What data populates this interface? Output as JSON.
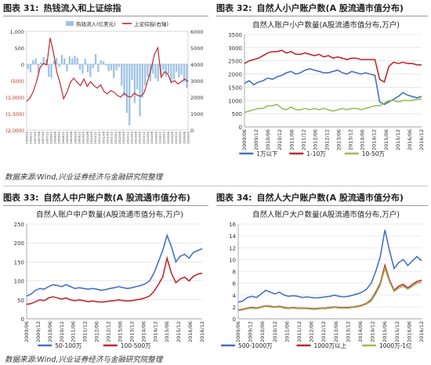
{
  "panels": {
    "p31": {
      "label": "图表 31:",
      "title": "热钱流入和上证综指"
    },
    "p32": {
      "label": "图表 32:",
      "title": "自然人小户账户数(A 股流通市值分布)"
    },
    "p33": {
      "label": "图表 33:",
      "title": "自然人中户账户数(A 股流通市值分布)"
    },
    "p34": {
      "label": "图表 34:",
      "title": "自然人大户账户数(A 股流通市值分布)"
    }
  },
  "sources": {
    "top": "数据来源:Wind,兴业证券经济与金融研究院整理",
    "bottom": "数据来源:Wind,兴业证券经济与金融研究院整理"
  },
  "chart_data": [
    {
      "id": "c31",
      "type": "bar",
      "title": "",
      "legend": [
        "热钱流入(亿美元)",
        "上证综指(右轴)"
      ],
      "legend_position": "top",
      "ylim": [
        -2000,
        1000
      ],
      "yticks": [
        "1,000",
        "500",
        "0",
        "(500)",
        "(1,000)",
        "(1,500)",
        "(2,000)"
      ],
      "ylim_right": [
        0,
        6000
      ],
      "yticks_right": [
        "6000",
        "5000",
        "4000",
        "3000",
        "2000",
        "1000",
        "0"
      ],
      "xticks": [
        "2006/09",
        "2006/12",
        "2007/03",
        "2007/06",
        "2007/09",
        "2007/12",
        "2008/03",
        "2008/06",
        "2008/09",
        "2008/12",
        "2009/03",
        "2009/06",
        "2009/09",
        "2009/12",
        "2010/03",
        "2010/06",
        "2010/09",
        "2010/12",
        "2011/03",
        "2011/06",
        "2011/09",
        "2011/12",
        "2012/03",
        "2012/06",
        "2012/09",
        "2012/12",
        "2013/03",
        "2013/06",
        "2013/09",
        "2013/12",
        "2014/03",
        "2014/06",
        "2014/09",
        "2014/12",
        "2015/03",
        "2015/06",
        "2015/09",
        "2015/12",
        "2016/03",
        "2016/06",
        "2016/09"
      ],
      "series": [
        {
          "name": "热钱流入(亿美元)",
          "color": "#9dc3e6",
          "axis": "left",
          "values": [
            -150,
            -250,
            120,
            180,
            -280,
            60,
            220,
            150,
            -380,
            -420,
            110,
            190,
            -80,
            280,
            180,
            -220,
            240,
            170,
            260,
            190,
            -160,
            -280,
            160,
            -240,
            -380,
            -120,
            310,
            -240,
            120,
            90,
            -30,
            -210,
            -180,
            -420,
            -180,
            -80,
            -650,
            -980,
            -1480,
            -1860,
            -480,
            -1180,
            -760,
            -1580,
            -1020,
            -640,
            -380,
            -520,
            -280,
            -430,
            -520,
            -340,
            -180,
            -380,
            -280,
            -580,
            -460,
            -230,
            -400,
            -320,
            -540,
            -720
          ]
        },
        {
          "name": "上证综指(右轴)",
          "color": "#c0282e",
          "axis": "right",
          "values": [
            1750,
            1950,
            2350,
            3000,
            3800,
            4050,
            3950,
            5600,
            4700,
            3500,
            2800,
            1900,
            2300,
            2900,
            3150,
            2900,
            2700,
            3100,
            2650,
            2950,
            2700,
            2550,
            2750,
            2350,
            2200,
            2400,
            2300,
            2100,
            2000,
            2250,
            2050,
            2000,
            2250,
            2100,
            2050,
            2300,
            3000,
            3700,
            4600,
            5000,
            3200,
            3550,
            3400,
            2900,
            3000,
            2800,
            2950,
            3100,
            2950
          ]
        }
      ]
    },
    {
      "id": "c32",
      "type": "line",
      "title": "自然人账户小户数量(A股流通市值分布,万户)",
      "ylim": [
        0,
        3500
      ],
      "yticks": [
        "3500",
        "3000",
        "2500",
        "2000",
        "1500",
        "1000",
        "500",
        "0"
      ],
      "xticks": [
        "2009/06",
        "2009/12",
        "2010/06",
        "2010/12",
        "2011/06",
        "2011/12",
        "2012/06",
        "2012/12",
        "2013/06",
        "2013/12",
        "2014/06",
        "2014/12",
        "2015/06",
        "2015/12",
        "2016/06",
        "2016/12"
      ],
      "legend_position": "bottom",
      "series": [
        {
          "name": "1万以下",
          "color": "#4472c4",
          "values": [
            1650,
            1750,
            1600,
            1700,
            1750,
            1850,
            1800,
            1900,
            1950,
            2050,
            2100,
            2000,
            2050,
            2150,
            2200,
            2150,
            2100,
            2050,
            2050,
            2100,
            2150,
            2050,
            2000,
            2100,
            2050,
            2000,
            2050,
            2000,
            1950,
            950,
            850,
            950,
            1050,
            1150,
            1300,
            1200,
            1150,
            1100,
            1150
          ]
        },
        {
          "name": "1-10万",
          "color": "#c0282e",
          "values": [
            2400,
            2500,
            2550,
            2600,
            2700,
            2800,
            2850,
            2850,
            2900,
            2800,
            2850,
            2750,
            2750,
            2800,
            2750,
            2700,
            2750,
            2650,
            2700,
            2600,
            2650,
            2600,
            2550,
            2600,
            2600,
            2550,
            2550,
            2550,
            2550,
            1800,
            1700,
            2300,
            2450,
            2400,
            2450,
            2400,
            2400,
            2350,
            2350
          ]
        },
        {
          "name": "10-50万",
          "color": "#9bbb59",
          "values": [
            550,
            600,
            650,
            700,
            700,
            800,
            800,
            850,
            700,
            650,
            750,
            650,
            650,
            700,
            650,
            700,
            650,
            700,
            650,
            600,
            650,
            700,
            650,
            700,
            700,
            650,
            700,
            750,
            800,
            800,
            900,
            1000,
            1000,
            950,
            1000,
            1000,
            1000,
            1050,
            1050
          ]
        }
      ]
    },
    {
      "id": "c33",
      "type": "line",
      "title": "自然人账户中户数量(A股流通市值分布,万户)",
      "ylim": [
        0,
        250
      ],
      "yticks": [
        "250",
        "200",
        "150",
        "100",
        "50",
        "0"
      ],
      "xticks": [
        "2009/06",
        "2009/12",
        "2010/06",
        "2010/12",
        "2011/06",
        "2011/12",
        "2012/06",
        "2012/12",
        "2013/06",
        "2013/12",
        "2014/06",
        "2014/12",
        "2015/06",
        "2015/12",
        "2016/06",
        "2016/12"
      ],
      "legend_position": "bottom",
      "series": [
        {
          "name": "50-100万",
          "color": "#4472c4",
          "values": [
            60,
            65,
            75,
            80,
            78,
            85,
            90,
            88,
            85,
            90,
            85,
            80,
            82,
            80,
            78,
            80,
            78,
            75,
            77,
            80,
            82,
            85,
            82,
            80,
            82,
            85,
            88,
            92,
            100,
            120,
            150,
            180,
            220,
            190,
            150,
            165,
            170,
            160,
            175,
            180,
            185
          ]
        },
        {
          "name": "100-500万",
          "color": "#c0282e",
          "values": [
            38,
            40,
            45,
            50,
            48,
            55,
            58,
            55,
            52,
            55,
            50,
            48,
            50,
            48,
            45,
            47,
            45,
            44,
            45,
            47,
            48,
            50,
            48,
            47,
            48,
            50,
            52,
            55,
            60,
            72,
            90,
            110,
            160,
            120,
            95,
            105,
            110,
            100,
            112,
            118,
            120
          ]
        }
      ]
    },
    {
      "id": "c34",
      "type": "line",
      "title": "自然人账户大户数量(A股流通市值分布,万户)",
      "ylim": [
        0,
        16
      ],
      "yticks": [
        "16",
        "14",
        "12",
        "10",
        "8",
        "6",
        "4",
        "2",
        "0"
      ],
      "xticks": [
        "2009/06",
        "2009/12",
        "2010/06",
        "2010/12",
        "2011/06",
        "2011/12",
        "2012/06",
        "2012/12",
        "2013/06",
        "2013/12",
        "2014/06",
        "2014/12",
        "2015/06",
        "2015/12",
        "2016/06",
        "2016/12"
      ],
      "legend_position": "bottom",
      "series": [
        {
          "name": "500-1000万",
          "color": "#4472c4",
          "values": [
            2.8,
            3.0,
            3.6,
            3.8,
            3.6,
            4.2,
            4.8,
            4.5,
            4.2,
            4.5,
            4.0,
            3.8,
            3.9,
            3.8,
            3.6,
            3.7,
            3.6,
            3.5,
            3.6,
            3.7,
            3.8,
            4.0,
            3.8,
            3.7,
            3.8,
            4.0,
            4.2,
            4.5,
            5.0,
            6.0,
            8.0,
            10.5,
            15.0,
            11.5,
            8.5,
            9.5,
            10.0,
            9.0,
            9.8,
            10.5,
            9.8
          ]
        },
        {
          "name": "1000万以上",
          "color": "#c0282e",
          "values": [
            1.5,
            1.6,
            1.8,
            1.9,
            1.8,
            2.0,
            2.2,
            2.1,
            2.0,
            2.1,
            1.9,
            1.8,
            1.9,
            1.8,
            1.8,
            1.8,
            1.7,
            1.7,
            1.8,
            1.8,
            1.9,
            2.0,
            1.9,
            1.9,
            1.9,
            2.0,
            2.1,
            2.3,
            2.6,
            3.2,
            4.5,
            6.0,
            9.0,
            6.5,
            4.8,
            5.5,
            5.8,
            5.2,
            5.8,
            6.3,
            6.5
          ]
        },
        {
          "name": "1000万-1亿",
          "color": "#9bbb59",
          "values": [
            1.4,
            1.5,
            1.7,
            1.8,
            1.7,
            1.9,
            2.1,
            2.0,
            1.9,
            2.0,
            1.8,
            1.7,
            1.8,
            1.7,
            1.7,
            1.7,
            1.6,
            1.6,
            1.7,
            1.7,
            1.8,
            1.9,
            1.8,
            1.8,
            1.8,
            1.9,
            2.0,
            2.2,
            2.5,
            3.0,
            4.2,
            5.7,
            8.5,
            6.2,
            4.6,
            5.2,
            5.5,
            5.0,
            5.5,
            6.0,
            6.2
          ]
        }
      ]
    }
  ]
}
